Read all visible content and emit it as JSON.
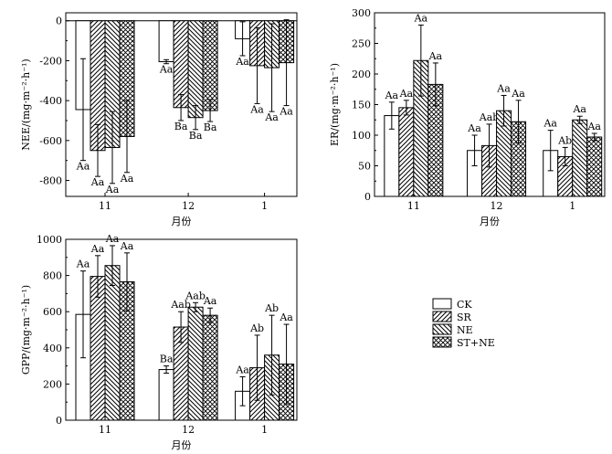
{
  "chart_data": [
    {
      "id": "nee",
      "type": "bar",
      "ylabel": "NEE/(mg·m⁻²·h⁻¹)",
      "xlabel": "月份",
      "categories": [
        "11",
        "12",
        "1"
      ],
      "ylim": [
        -880,
        40
      ],
      "yticks": [
        0,
        -200,
        -400,
        -600,
        -800
      ],
      "zero_line": true,
      "series": [
        {
          "name": "CK",
          "values": [
            -445,
            -205,
            -90
          ],
          "errors": [
            255,
            10,
            85
          ],
          "labels": [
            "Aa",
            "Aa",
            "Aa"
          ]
        },
        {
          "name": "SR",
          "values": [
            -650,
            -435,
            -225
          ],
          "errors": [
            130,
            65,
            190
          ],
          "labels": [
            "Aa",
            "Ba",
            "Aa"
          ]
        },
        {
          "name": "NE",
          "values": [
            -635,
            -485,
            -235
          ],
          "errors": [
            180,
            60,
            220
          ],
          "labels": [
            "Aa",
            "Ba",
            "Aa"
          ]
        },
        {
          "name": "ST+NE",
          "values": [
            -580,
            -450,
            -210
          ],
          "errors": [
            180,
            55,
            215
          ],
          "labels": [
            "Aa",
            "Ba",
            "Aa"
          ]
        }
      ]
    },
    {
      "id": "er",
      "type": "bar",
      "ylabel": "ER/(mg·m⁻²·h⁻¹)",
      "xlabel": "月份",
      "categories": [
        "11",
        "12",
        "1"
      ],
      "ylim": [
        0,
        300
      ],
      "yticks": [
        0,
        50,
        100,
        150,
        200,
        250,
        300
      ],
      "series": [
        {
          "name": "CK",
          "values": [
            132,
            75,
            75
          ],
          "errors": [
            22,
            25,
            33
          ],
          "labels": [
            "Aa",
            "Aa",
            "Aa"
          ]
        },
        {
          "name": "SR",
          "values": [
            145,
            83,
            65
          ],
          "errors": [
            12,
            35,
            15
          ],
          "labels": [
            "Aa",
            "Aab",
            "Ab"
          ]
        },
        {
          "name": "NE",
          "values": [
            222,
            140,
            125
          ],
          "errors": [
            58,
            25,
            6
          ],
          "labels": [
            "Aa",
            "Aa",
            "Aa"
          ]
        },
        {
          "name": "ST+NE",
          "values": [
            183,
            122,
            97
          ],
          "errors": [
            35,
            35,
            6
          ],
          "labels": [
            "Aa",
            "Aa",
            "Aa"
          ]
        }
      ]
    },
    {
      "id": "gpp",
      "type": "bar",
      "ylabel": "GPP/(mg·m⁻²·h⁻¹)",
      "xlabel": "月份",
      "categories": [
        "11",
        "12",
        "1"
      ],
      "ylim": [
        0,
        1000
      ],
      "yticks": [
        0,
        200,
        400,
        600,
        800,
        1000
      ],
      "series": [
        {
          "name": "CK",
          "values": [
            585,
            280,
            160
          ],
          "errors": [
            240,
            20,
            80
          ],
          "labels": [
            "Aa",
            "Ba",
            "Aa"
          ]
        },
        {
          "name": "SR",
          "values": [
            795,
            515,
            290
          ],
          "errors": [
            115,
            85,
            180
          ],
          "labels": [
            "Aa",
            "Aab",
            "Ab"
          ]
        },
        {
          "name": "NE",
          "values": [
            855,
            625,
            360
          ],
          "errors": [
            110,
            25,
            220
          ],
          "labels": [
            "Aa",
            "Aab",
            "Ab"
          ]
        },
        {
          "name": "ST+NE",
          "values": [
            765,
            580,
            310
          ],
          "errors": [
            160,
            40,
            220
          ],
          "labels": [
            "Aa",
            "Aa",
            "Aa"
          ]
        }
      ]
    }
  ],
  "legend": {
    "items": [
      {
        "name": "CK",
        "pattern": "blank"
      },
      {
        "name": "SR",
        "pattern": "diag-right"
      },
      {
        "name": "NE",
        "pattern": "diag-left"
      },
      {
        "name": "ST+NE",
        "pattern": "crosshatch"
      }
    ]
  }
}
